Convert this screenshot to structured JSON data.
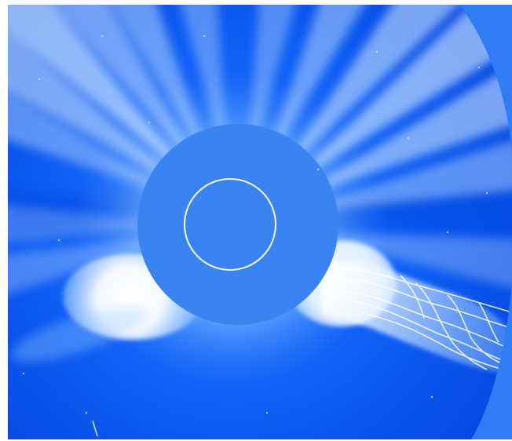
{
  "image": {
    "subject": "coronagraph-view",
    "colors": {
      "background": "#0a5af2",
      "background_dark": "#0448e0",
      "occulting_disk": "#3a84f2",
      "outer_corner": "#2f7cf4",
      "streamer": "#d8ecff",
      "bright_region": "#ffffff",
      "sun_outline": "#ffffff"
    }
  }
}
